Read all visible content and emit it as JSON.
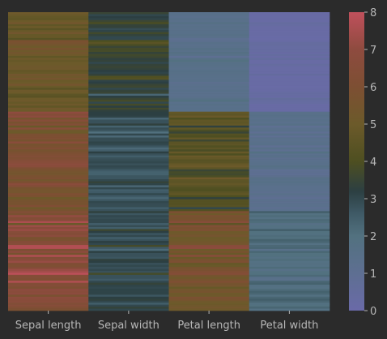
{
  "chart_data": {
    "type": "heatmap",
    "title": "",
    "xlabel": "",
    "ylabel": "",
    "columns": [
      "Sepal length",
      "Sepal width",
      "Petal length",
      "Petal width"
    ],
    "row_count": 150,
    "grid": false,
    "colorbar": {
      "position": "right",
      "vmin": 0,
      "vmax": 8,
      "ticks": [
        "0",
        "1",
        "2",
        "3",
        "4",
        "5",
        "6",
        "7",
        "8"
      ],
      "colors": [
        {
          "v": 0,
          "hex": "#6a6aa8"
        },
        {
          "v": 1,
          "hex": "#5e6f92"
        },
        {
          "v": 2,
          "hex": "#52717f"
        },
        {
          "v": 2.6,
          "hex": "#3f5a66"
        },
        {
          "v": 3.2,
          "hex": "#2c3f42"
        },
        {
          "v": 4,
          "hex": "#4e4f21"
        },
        {
          "v": 5,
          "hex": "#6c5a2a"
        },
        {
          "v": 6,
          "hex": "#7d4f33"
        },
        {
          "v": 7,
          "hex": "#8e4b3f"
        },
        {
          "v": 8,
          "hex": "#c0505c"
        }
      ]
    },
    "series": [
      {
        "name": "Sepal length",
        "values": [
          5.1,
          4.9,
          4.7,
          4.6,
          5.0,
          5.4,
          4.6,
          5.0,
          4.4,
          4.9,
          5.4,
          4.8,
          4.8,
          4.3,
          5.8,
          5.7,
          5.4,
          5.1,
          5.7,
          5.1,
          5.4,
          5.1,
          4.6,
          5.1,
          4.8,
          5.0,
          5.0,
          5.2,
          5.2,
          4.7,
          4.8,
          5.4,
          5.2,
          5.5,
          4.9,
          5.0,
          5.5,
          4.9,
          4.4,
          5.1,
          5.0,
          4.5,
          4.4,
          5.0,
          5.1,
          4.8,
          5.1,
          4.6,
          5.3,
          5.0,
          7.0,
          6.4,
          6.9,
          5.5,
          6.5,
          5.7,
          6.3,
          4.9,
          6.6,
          5.2,
          5.0,
          5.9,
          6.0,
          6.1,
          5.6,
          6.7,
          5.6,
          5.8,
          6.2,
          5.6,
          5.9,
          6.1,
          6.3,
          6.1,
          6.4,
          6.6,
          6.8,
          6.7,
          6.0,
          5.7,
          5.5,
          5.5,
          5.8,
          6.0,
          5.4,
          6.0,
          6.7,
          6.3,
          5.6,
          5.5,
          5.5,
          6.1,
          5.8,
          5.0,
          5.6,
          5.7,
          5.7,
          6.2,
          5.1,
          5.7,
          6.3,
          5.8,
          7.1,
          6.3,
          6.5,
          7.6,
          4.9,
          7.3,
          6.7,
          7.2,
          6.5,
          6.4,
          6.8,
          5.7,
          5.8,
          6.4,
          6.5,
          7.7,
          7.7,
          6.0,
          6.9,
          5.6,
          7.7,
          6.3,
          6.7,
          7.2,
          6.2,
          6.1,
          6.4,
          7.2,
          7.4,
          7.9,
          6.4,
          6.3,
          6.1,
          7.7,
          6.3,
          6.4,
          6.0,
          6.9,
          6.7,
          6.9,
          5.8,
          6.8,
          6.7,
          6.7,
          6.3,
          6.5,
          6.2,
          5.9
        ]
      },
      {
        "name": "Sepal width",
        "values": [
          3.5,
          3.0,
          3.2,
          3.1,
          3.6,
          3.9,
          3.4,
          3.4,
          2.9,
          3.1,
          3.7,
          3.4,
          3.0,
          3.0,
          4.0,
          4.4,
          3.9,
          3.5,
          3.8,
          3.8,
          3.4,
          3.7,
          3.6,
          3.3,
          3.4,
          3.0,
          3.4,
          3.5,
          3.4,
          3.2,
          3.1,
          3.4,
          4.1,
          4.2,
          3.1,
          3.2,
          3.5,
          3.6,
          3.0,
          3.4,
          3.5,
          2.3,
          3.2,
          3.5,
          3.8,
          3.0,
          3.8,
          3.2,
          3.7,
          3.3,
          3.2,
          3.2,
          3.1,
          2.3,
          2.8,
          2.8,
          3.3,
          2.4,
          2.9,
          2.7,
          2.0,
          3.0,
          2.2,
          2.9,
          2.9,
          3.1,
          3.0,
          2.7,
          2.2,
          2.5,
          3.2,
          2.8,
          2.5,
          2.8,
          2.9,
          3.0,
          2.8,
          3.0,
          2.9,
          2.6,
          2.4,
          2.4,
          2.7,
          2.7,
          3.0,
          3.4,
          3.1,
          2.3,
          3.0,
          2.5,
          2.6,
          3.0,
          2.6,
          2.3,
          2.7,
          3.0,
          2.9,
          2.9,
          2.5,
          2.8,
          3.3,
          2.7,
          3.0,
          2.9,
          3.0,
          3.0,
          2.5,
          2.9,
          2.5,
          3.6,
          3.2,
          2.7,
          3.0,
          2.5,
          2.8,
          3.2,
          3.0,
          3.8,
          2.6,
          2.2,
          3.2,
          2.8,
          2.8,
          2.7,
          3.3,
          3.2,
          2.8,
          3.0,
          2.8,
          3.0,
          2.8,
          3.8,
          2.8,
          2.8,
          2.6,
          3.0,
          3.4,
          3.1,
          3.0,
          3.1,
          3.1,
          3.1,
          2.7,
          3.2,
          3.3,
          3.0,
          2.5,
          3.0,
          3.4,
          3.0
        ]
      },
      {
        "name": "Petal length",
        "values": [
          1.4,
          1.4,
          1.3,
          1.5,
          1.4,
          1.7,
          1.4,
          1.5,
          1.4,
          1.5,
          1.5,
          1.6,
          1.4,
          1.1,
          1.2,
          1.5,
          1.3,
          1.4,
          1.7,
          1.5,
          1.7,
          1.5,
          1.0,
          1.7,
          1.9,
          1.6,
          1.6,
          1.5,
          1.4,
          1.6,
          1.6,
          1.5,
          1.5,
          1.4,
          1.5,
          1.2,
          1.3,
          1.4,
          1.3,
          1.5,
          1.3,
          1.3,
          1.3,
          1.6,
          1.9,
          1.4,
          1.6,
          1.4,
          1.5,
          1.4,
          4.7,
          4.5,
          4.9,
          4.0,
          4.6,
          4.5,
          4.7,
          3.3,
          4.6,
          3.9,
          3.5,
          4.2,
          4.0,
          4.7,
          3.6,
          4.4,
          4.5,
          4.1,
          4.5,
          3.9,
          4.8,
          4.0,
          4.9,
          4.7,
          4.3,
          4.4,
          4.8,
          5.0,
          4.5,
          3.5,
          3.8,
          3.7,
          3.9,
          5.1,
          4.5,
          4.5,
          4.7,
          4.4,
          4.1,
          4.0,
          4.4,
          4.6,
          4.0,
          3.3,
          4.2,
          4.2,
          4.2,
          4.3,
          3.0,
          4.1,
          6.0,
          5.1,
          5.9,
          5.6,
          5.8,
          6.6,
          4.5,
          6.3,
          5.8,
          6.1,
          5.1,
          5.3,
          5.5,
          5.0,
          5.1,
          5.3,
          5.5,
          6.7,
          6.9,
          5.0,
          5.7,
          4.9,
          6.7,
          4.9,
          5.7,
          6.0,
          4.8,
          4.9,
          5.6,
          5.8,
          6.1,
          6.4,
          5.6,
          5.1,
          5.6,
          6.1,
          5.6,
          5.5,
          4.8,
          5.4,
          5.6,
          5.1,
          5.1,
          5.9,
          5.7,
          5.2,
          5.0,
          5.2,
          5.4,
          5.1
        ]
      },
      {
        "name": "Petal width",
        "values": [
          0.2,
          0.2,
          0.2,
          0.2,
          0.2,
          0.4,
          0.3,
          0.2,
          0.2,
          0.1,
          0.2,
          0.2,
          0.1,
          0.1,
          0.2,
          0.4,
          0.4,
          0.3,
          0.3,
          0.3,
          0.2,
          0.4,
          0.2,
          0.5,
          0.2,
          0.2,
          0.4,
          0.2,
          0.2,
          0.2,
          0.2,
          0.4,
          0.1,
          0.2,
          0.2,
          0.2,
          0.2,
          0.1,
          0.2,
          0.2,
          0.3,
          0.3,
          0.2,
          0.6,
          0.4,
          0.3,
          0.2,
          0.2,
          0.2,
          0.2,
          1.4,
          1.5,
          1.5,
          1.3,
          1.5,
          1.3,
          1.6,
          1.0,
          1.3,
          1.4,
          1.0,
          1.5,
          1.0,
          1.4,
          1.3,
          1.4,
          1.5,
          1.0,
          1.5,
          1.1,
          1.8,
          1.3,
          1.5,
          1.2,
          1.3,
          1.4,
          1.4,
          1.7,
          1.5,
          1.0,
          1.1,
          1.0,
          1.2,
          1.6,
          1.5,
          1.6,
          1.5,
          1.3,
          1.3,
          1.3,
          1.2,
          1.4,
          1.2,
          1.0,
          1.3,
          1.2,
          1.3,
          1.3,
          1.1,
          1.3,
          2.5,
          1.9,
          2.1,
          1.8,
          2.2,
          2.1,
          1.7,
          1.8,
          1.8,
          2.5,
          2.0,
          1.9,
          2.1,
          2.0,
          2.4,
          2.3,
          1.8,
          2.2,
          2.3,
          1.5,
          2.3,
          2.0,
          2.0,
          1.8,
          2.1,
          1.8,
          1.8,
          1.8,
          2.1,
          1.6,
          1.9,
          2.0,
          2.2,
          1.5,
          1.4,
          2.3,
          2.4,
          1.8,
          1.8,
          2.1,
          2.4,
          2.3,
          1.9,
          2.3,
          2.5,
          2.3,
          1.9,
          2.0,
          2.3,
          1.8
        ]
      }
    ]
  }
}
